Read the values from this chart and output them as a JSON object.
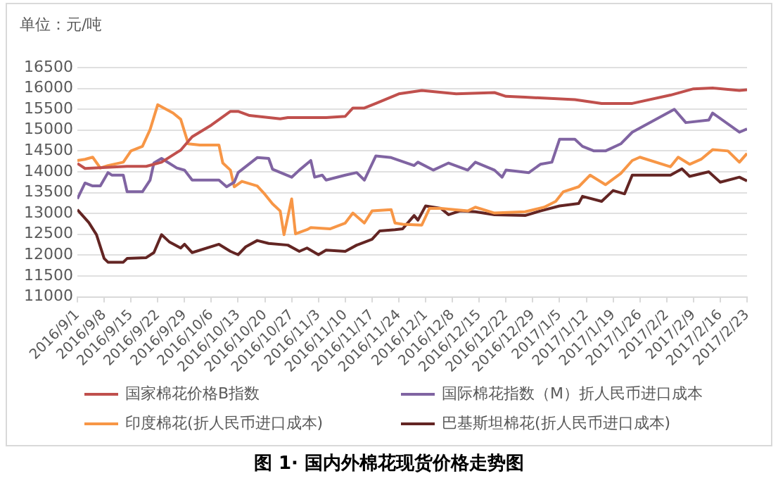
{
  "chart_data": {
    "type": "line",
    "title": "图 1· 国内外棉花现货价格走势图",
    "ylabel": "单位：元/吨",
    "xlim": [
      "2016-09-01",
      "2017-02-23"
    ],
    "xticks": [
      {
        "value": "2016-09-01",
        "label": "2016/9/1"
      },
      {
        "value": "2016-09-08",
        "label": "2016/9/8"
      },
      {
        "value": "2016-09-15",
        "label": "2016/9/15"
      },
      {
        "value": "2016-09-22",
        "label": "2016/9/22"
      },
      {
        "value": "2016-09-29",
        "label": "2016/9/29"
      },
      {
        "value": "2016-10-06",
        "label": "2016/10/6"
      },
      {
        "value": "2016-10-13",
        "label": "2016/10/13"
      },
      {
        "value": "2016-10-20",
        "label": "2016/10/20"
      },
      {
        "value": "2016-10-27",
        "label": "2016/10/27"
      },
      {
        "value": "2016-11-03",
        "label": "2016/11/3"
      },
      {
        "value": "2016-11-10",
        "label": "2016/11/10"
      },
      {
        "value": "2016-11-17",
        "label": "2016/11/17"
      },
      {
        "value": "2016-11-24",
        "label": "2016/11/24"
      },
      {
        "value": "2016-12-01",
        "label": "2016/12/1"
      },
      {
        "value": "2016-12-08",
        "label": "2016/12/8"
      },
      {
        "value": "2016-12-15",
        "label": "2016/12/15"
      },
      {
        "value": "2016-12-22",
        "label": "2016/12/22"
      },
      {
        "value": "2016-12-29",
        "label": "2016/12/29"
      },
      {
        "value": "2017-01-05",
        "label": "2017/1/5"
      },
      {
        "value": "2017-01-12",
        "label": "2017/1/12"
      },
      {
        "value": "2017-01-19",
        "label": "2017/1/19"
      },
      {
        "value": "2017-01-26",
        "label": "2017/1/26"
      },
      {
        "value": "2017-02-02",
        "label": "2017/2/2"
      },
      {
        "value": "2017-02-09",
        "label": "2017/2/9"
      },
      {
        "value": "2017-02-16",
        "label": "2017/2/16"
      },
      {
        "value": "2017-02-23",
        "label": "2017/2/23"
      }
    ],
    "ylim": [
      11000,
      16500
    ],
    "yticks": [
      11000,
      11500,
      12000,
      12500,
      13000,
      13500,
      14000,
      14500,
      15000,
      15500,
      16000,
      16500
    ],
    "grid": "y",
    "legend": "bottom",
    "marker": "none",
    "line_style": "solid",
    "series": [
      {
        "name": "国家棉花价格B指数",
        "color": "#c0504d",
        "x": [
          "2016-09-01",
          "2016-09-03",
          "2016-09-14",
          "2016-09-19",
          "2016-09-23",
          "2016-09-28",
          "2016-10-01",
          "2016-10-06",
          "2016-10-11",
          "2016-10-13",
          "2016-10-16",
          "2016-10-24",
          "2016-10-26",
          "2016-11-05",
          "2016-11-10",
          "2016-11-12",
          "2016-11-15",
          "2016-11-18",
          "2016-11-24",
          "2016-11-30",
          "2016-12-09",
          "2016-12-19",
          "2016-12-22",
          "2016-12-27",
          "2017-01-09",
          "2017-01-16",
          "2017-01-24",
          "2017-02-03",
          "2017-02-09",
          "2017-02-14",
          "2017-02-21",
          "2017-02-23"
        ],
        "values": [
          14200,
          14080,
          14130,
          14130,
          14230,
          14520,
          14840,
          15120,
          15450,
          15450,
          15350,
          15270,
          15300,
          15300,
          15330,
          15530,
          15530,
          15640,
          15870,
          15950,
          15870,
          15900,
          15810,
          15790,
          15730,
          15640,
          15640,
          15840,
          15990,
          16010,
          15950,
          15970
        ]
      },
      {
        "name": "国际棉花指数（M）折人民币进口成本",
        "color": "#8064a2",
        "x": [
          "2016-09-01",
          "2016-09-03",
          "2016-09-05",
          "2016-09-07",
          "2016-09-09",
          "2016-09-10",
          "2016-09-13",
          "2016-09-14",
          "2016-09-18",
          "2016-09-20",
          "2016-09-21",
          "2016-09-23",
          "2016-09-27",
          "2016-09-29",
          "2016-10-01",
          "2016-10-08",
          "2016-10-10",
          "2016-10-12",
          "2016-10-13",
          "2016-10-18",
          "2016-10-21",
          "2016-10-22",
          "2016-10-27",
          "2016-10-29",
          "2016-11-01",
          "2016-11-02",
          "2016-11-04",
          "2016-11-05",
          "2016-11-10",
          "2016-11-13",
          "2016-11-15",
          "2016-11-18",
          "2016-11-22",
          "2016-11-28",
          "2016-11-29",
          "2016-12-03",
          "2016-12-07",
          "2016-12-12",
          "2016-12-14",
          "2016-12-19",
          "2016-12-21",
          "2016-12-22",
          "2016-12-28",
          "2016-12-31",
          "2017-01-03",
          "2017-01-05",
          "2017-01-09",
          "2017-01-11",
          "2017-01-14",
          "2017-01-17",
          "2017-01-21",
          "2017-01-24",
          "2017-02-04",
          "2017-02-07",
          "2017-02-13",
          "2017-02-14",
          "2017-02-21",
          "2017-02-23"
        ],
        "values": [
          13350,
          13730,
          13660,
          13660,
          13980,
          13920,
          13920,
          13520,
          13520,
          13800,
          14210,
          14320,
          14090,
          14040,
          13800,
          13800,
          13640,
          13750,
          13980,
          14340,
          14320,
          14060,
          13870,
          14040,
          14270,
          13870,
          13920,
          13800,
          13920,
          13980,
          13800,
          14380,
          14340,
          14150,
          14230,
          14040,
          14210,
          14040,
          14230,
          14040,
          13870,
          14040,
          13980,
          14180,
          14230,
          14780,
          14780,
          14610,
          14500,
          14500,
          14670,
          14950,
          15500,
          15180,
          15240,
          15410,
          14950,
          15030
        ]
      },
      {
        "name": "印度棉花(折人民币进口成本)",
        "color": "#f79646",
        "x": [
          "2016-09-01",
          "2016-09-03",
          "2016-09-05",
          "2016-09-07",
          "2016-09-09",
          "2016-09-13",
          "2016-09-15",
          "2016-09-18",
          "2016-09-20",
          "2016-09-22",
          "2016-09-26",
          "2016-09-28",
          "2016-09-30",
          "2016-10-03",
          "2016-10-08",
          "2016-10-09",
          "2016-10-11",
          "2016-10-12",
          "2016-10-14",
          "2016-10-18",
          "2016-10-20",
          "2016-10-22",
          "2016-10-24",
          "2016-10-25",
          "2016-10-27",
          "2016-10-28",
          "2016-10-31",
          "2016-11-01",
          "2016-11-06",
          "2016-11-10",
          "2016-11-12",
          "2016-11-15",
          "2016-11-17",
          "2016-11-22",
          "2016-11-23",
          "2016-11-25",
          "2016-11-30",
          "2016-12-02",
          "2016-12-05",
          "2016-12-12",
          "2016-12-14",
          "2016-12-19",
          "2016-12-27",
          "2017-01-01",
          "2017-01-04",
          "2017-01-06",
          "2017-01-10",
          "2017-01-13",
          "2017-01-17",
          "2017-01-21",
          "2017-01-24",
          "2017-01-26",
          "2017-02-03",
          "2017-02-05",
          "2017-02-08",
          "2017-02-11",
          "2017-02-14",
          "2017-02-18",
          "2017-02-21",
          "2017-02-23"
        ],
        "values": [
          14270,
          14300,
          14350,
          14090,
          14150,
          14230,
          14500,
          14610,
          15010,
          15610,
          15410,
          15260,
          14670,
          14640,
          14640,
          14210,
          14040,
          13640,
          13770,
          13660,
          13460,
          13230,
          13060,
          12490,
          13350,
          12510,
          12610,
          12660,
          12630,
          12770,
          13010,
          12770,
          13060,
          13090,
          12770,
          12740,
          12720,
          13120,
          13120,
          13060,
          13150,
          13010,
          13040,
          13150,
          13290,
          13520,
          13640,
          13920,
          13690,
          13960,
          14270,
          14350,
          14120,
          14350,
          14180,
          14300,
          14530,
          14500,
          14230,
          14440
        ]
      },
      {
        "name": "巴基斯坦棉花(折人民币进口成本)",
        "color": "#632523",
        "x": [
          "2016-09-01",
          "2016-09-04",
          "2016-09-06",
          "2016-09-08",
          "2016-09-09",
          "2016-09-13",
          "2016-09-14",
          "2016-09-19",
          "2016-09-21",
          "2016-09-23",
          "2016-09-25",
          "2016-09-28",
          "2016-09-29",
          "2016-10-01",
          "2016-10-08",
          "2016-10-11",
          "2016-10-13",
          "2016-10-15",
          "2016-10-18",
          "2016-10-21",
          "2016-10-26",
          "2016-10-29",
          "2016-10-31",
          "2016-11-03",
          "2016-11-05",
          "2016-11-10",
          "2016-11-13",
          "2016-11-17",
          "2016-11-19",
          "2016-11-23",
          "2016-11-25",
          "2016-11-28",
          "2016-11-29",
          "2016-12-01",
          "2016-12-05",
          "2016-12-07",
          "2016-12-10",
          "2016-12-14",
          "2016-12-19",
          "2016-12-27",
          "2016-12-31",
          "2017-01-05",
          "2017-01-10",
          "2017-01-11",
          "2017-01-16",
          "2017-01-19",
          "2017-01-22",
          "2017-01-24",
          "2017-02-03",
          "2017-02-06",
          "2017-02-08",
          "2017-02-13",
          "2017-02-16",
          "2017-02-21",
          "2017-02-23"
        ],
        "values": [
          13090,
          12780,
          12490,
          11920,
          11830,
          11830,
          11920,
          11940,
          12060,
          12490,
          12320,
          12170,
          12260,
          12060,
          12260,
          12090,
          12010,
          12200,
          12350,
          12280,
          12240,
          12090,
          12170,
          12010,
          12120,
          12090,
          12240,
          12380,
          12580,
          12610,
          12630,
          12950,
          12840,
          13180,
          13120,
          12970,
          13060,
          13040,
          12970,
          12950,
          13060,
          13180,
          13240,
          13410,
          13290,
          13550,
          13470,
          13920,
          13920,
          14070,
          13890,
          14000,
          13750,
          13870,
          13780
        ]
      }
    ]
  }
}
